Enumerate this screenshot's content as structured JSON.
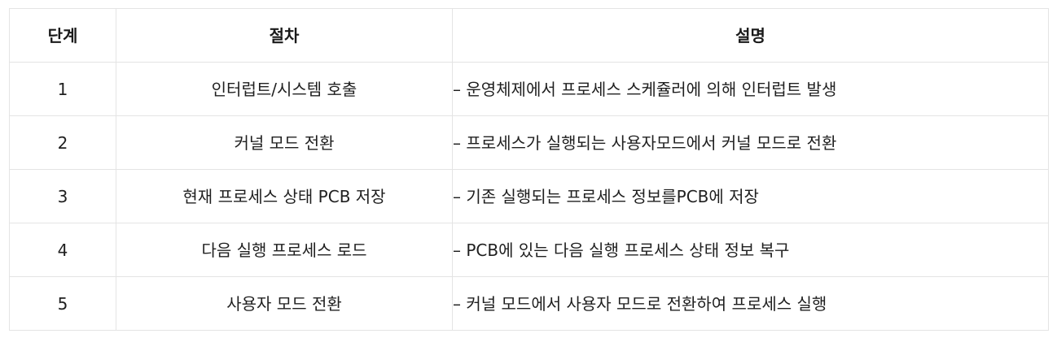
{
  "table": {
    "headers": {
      "step": "단계",
      "procedure": "절차",
      "description": "설명"
    },
    "rows": [
      {
        "step": "1",
        "procedure": "인터럽트/시스템 호출",
        "description": "– 운영체제에서 프로세스 스케쥴러에 의해 인터럽트 발생"
      },
      {
        "step": "2",
        "procedure": "커널 모드 전환",
        "description": "– 프로세스가 실행되는 사용자모드에서 커널 모드로 전환"
      },
      {
        "step": "3",
        "procedure": "현재 프로세스 상태 PCB 저장",
        "description": "– 기존 실행되는 프로세스 정보를PCB에 저장"
      },
      {
        "step": "4",
        "procedure": "다음 실행 프로세스 로드",
        "description": "– PCB에 있는 다음 실행 프로세스 상태 정보 복구"
      },
      {
        "step": "5",
        "procedure": "사용자 모드 전환",
        "description": "– 커널 모드에서 사용자 모드로 전환하여 프로세스 실행"
      }
    ]
  }
}
